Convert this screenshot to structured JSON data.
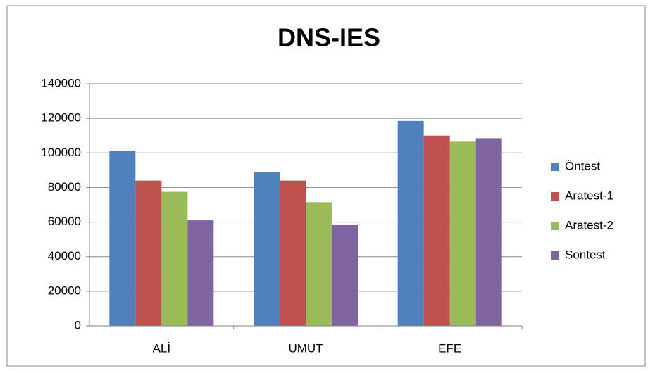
{
  "chart_data": {
    "type": "bar",
    "title": "DNS-IES",
    "categories": [
      "ALİ",
      "UMUT",
      "EFE"
    ],
    "series": [
      {
        "name": "Öntest",
        "color": "#4f81bd",
        "values": [
          101000,
          89000,
          118500
        ]
      },
      {
        "name": "Aratest-1",
        "color": "#c0504d",
        "values": [
          84000,
          84000,
          110000
        ]
      },
      {
        "name": "Aratest-2",
        "color": "#9bbb59",
        "values": [
          77500,
          71500,
          106500
        ]
      },
      {
        "name": "Sontest",
        "color": "#8064a2",
        "values": [
          61000,
          58500,
          108500
        ]
      }
    ],
    "ylim": [
      0,
      140000
    ],
    "yticks": [
      0,
      20000,
      40000,
      60000,
      80000,
      100000,
      120000,
      140000
    ],
    "grid": true,
    "legend": "right"
  }
}
